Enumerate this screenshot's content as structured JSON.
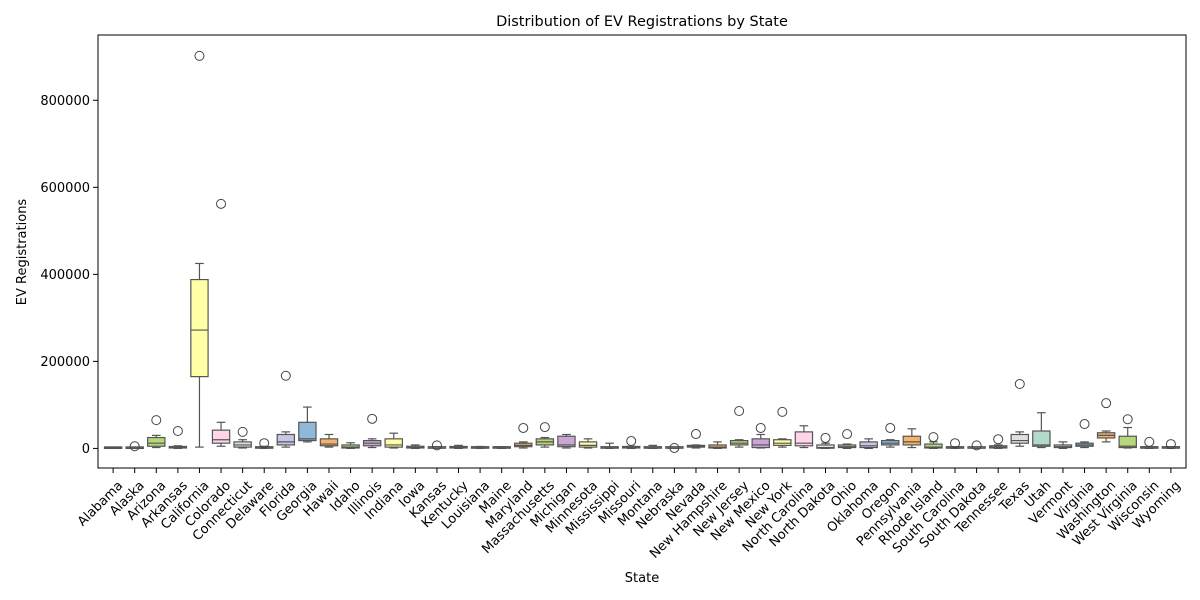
{
  "chart_data": {
    "type": "box",
    "title": "Distribution of EV Registrations by State",
    "xlabel": "State",
    "ylabel": "EV Registrations",
    "ylim": [
      -45000,
      950000
    ],
    "yticks": [
      0,
      200000,
      400000,
      600000,
      800000
    ],
    "ytick_labels": [
      "0",
      "200000",
      "400000",
      "600000",
      "800000"
    ],
    "grid": false,
    "palette": [
      "#8fb8d9",
      "#f6b26b",
      "#b6d77a",
      "#c9a6d6",
      "#ffffa6",
      "#ffd6e7",
      "#e0e0e0",
      "#b3d9c9",
      "#c6c6e6"
    ],
    "states": [
      {
        "name": "Alabama",
        "q1": 0,
        "med": 1000,
        "q3": 2000,
        "lo": 0,
        "hi": 3000,
        "out": []
      },
      {
        "name": "Alaska",
        "q1": 0,
        "med": 500,
        "q3": 1000,
        "lo": 0,
        "hi": 1500,
        "out": [
          5000
        ]
      },
      {
        "name": "Arizona",
        "q1": 5000,
        "med": 12000,
        "q3": 25000,
        "lo": 2000,
        "hi": 30000,
        "out": [
          65000
        ]
      },
      {
        "name": "Arkansas",
        "q1": 1000,
        "med": 2000,
        "q3": 4000,
        "lo": 0,
        "hi": 6000,
        "out": [
          40000
        ]
      },
      {
        "name": "California",
        "q1": 165000,
        "med": 272000,
        "q3": 388000,
        "lo": 3000,
        "hi": 425000,
        "out": [
          902000
        ]
      },
      {
        "name": "Colorado",
        "q1": 12000,
        "med": 20000,
        "q3": 42000,
        "lo": 5000,
        "hi": 60000,
        "out": [
          562000
        ]
      },
      {
        "name": "Connecticut",
        "q1": 3000,
        "med": 8000,
        "q3": 15000,
        "lo": 1000,
        "hi": 20000,
        "out": [
          38000
        ]
      },
      {
        "name": "Delaware",
        "q1": 500,
        "med": 1500,
        "q3": 3000,
        "lo": 0,
        "hi": 5000,
        "out": [
          12000
        ]
      },
      {
        "name": "Florida",
        "q1": 8000,
        "med": 15000,
        "q3": 32000,
        "lo": 3000,
        "hi": 38000,
        "out": [
          167000
        ]
      },
      {
        "name": "Georgia",
        "q1": 18000,
        "med": 22000,
        "q3": 60000,
        "lo": 15000,
        "hi": 95000,
        "out": []
      },
      {
        "name": "Hawaii",
        "q1": 6000,
        "med": 10000,
        "q3": 22000,
        "lo": 3000,
        "hi": 32000,
        "out": []
      },
      {
        "name": "Idaho",
        "q1": 1000,
        "med": 3000,
        "q3": 8000,
        "lo": 0,
        "hi": 13000,
        "out": []
      },
      {
        "name": "Illinois",
        "q1": 6000,
        "med": 12000,
        "q3": 18000,
        "lo": 2000,
        "hi": 22000,
        "out": [
          68000
        ]
      },
      {
        "name": "Indiana",
        "q1": 3000,
        "med": 8000,
        "q3": 22000,
        "lo": 1000,
        "hi": 35000,
        "out": []
      },
      {
        "name": "Iowa",
        "q1": 1000,
        "med": 2500,
        "q3": 5000,
        "lo": 0,
        "hi": 8000,
        "out": []
      },
      {
        "name": "Kansas",
        "q1": 500,
        "med": 1000,
        "q3": 2500,
        "lo": 0,
        "hi": 4000,
        "out": [
          7000
        ]
      },
      {
        "name": "Kentucky",
        "q1": 1000,
        "med": 2000,
        "q3": 4000,
        "lo": 0,
        "hi": 7000,
        "out": []
      },
      {
        "name": "Louisiana",
        "q1": 500,
        "med": 1500,
        "q3": 3000,
        "lo": 0,
        "hi": 4500,
        "out": []
      },
      {
        "name": "Maine",
        "q1": 500,
        "med": 1500,
        "q3": 3000,
        "lo": 0,
        "hi": 4000,
        "out": []
      },
      {
        "name": "Maryland",
        "q1": 4000,
        "med": 7000,
        "q3": 12000,
        "lo": 1000,
        "hi": 15000,
        "out": [
          47000
        ]
      },
      {
        "name": "Massachusetts",
        "q1": 8000,
        "med": 15000,
        "q3": 22000,
        "lo": 3000,
        "hi": 25000,
        "out": [
          49000
        ]
      },
      {
        "name": "Michigan",
        "q1": 4000,
        "med": 8000,
        "q3": 28000,
        "lo": 1000,
        "hi": 32000,
        "out": []
      },
      {
        "name": "Minnesota",
        "q1": 3000,
        "med": 7000,
        "q3": 15000,
        "lo": 1000,
        "hi": 22000,
        "out": []
      },
      {
        "name": "Mississippi",
        "q1": 500,
        "med": 1500,
        "q3": 4000,
        "lo": 0,
        "hi": 12000,
        "out": []
      },
      {
        "name": "Missouri",
        "q1": 1000,
        "med": 2000,
        "q3": 4000,
        "lo": 0,
        "hi": 5000,
        "out": [
          17000
        ]
      },
      {
        "name": "Montana",
        "q1": 500,
        "med": 1500,
        "q3": 4000,
        "lo": 0,
        "hi": 7000,
        "out": []
      },
      {
        "name": "Nebraska",
        "q1": 500,
        "med": 1000,
        "q3": 2000,
        "lo": 0,
        "hi": 3000,
        "out": [
          1000
        ]
      },
      {
        "name": "Nevada",
        "q1": 3000,
        "med": 5000,
        "q3": 7000,
        "lo": 1000,
        "hi": 8000,
        "out": [
          33000
        ]
      },
      {
        "name": "New Hampshire",
        "q1": 1000,
        "med": 3000,
        "q3": 8000,
        "lo": 0,
        "hi": 15000,
        "out": []
      },
      {
        "name": "New Jersey",
        "q1": 8000,
        "med": 12000,
        "q3": 18000,
        "lo": 3000,
        "hi": 20000,
        "out": [
          86000
        ]
      },
      {
        "name": "New Mexico",
        "q1": 2000,
        "med": 8000,
        "q3": 22000,
        "lo": 1000,
        "hi": 32000,
        "out": [
          47000
        ]
      },
      {
        "name": "New York",
        "q1": 7000,
        "med": 12000,
        "q3": 20000,
        "lo": 3000,
        "hi": 22000,
        "out": [
          84000
        ]
      },
      {
        "name": "North Carolina",
        "q1": 6000,
        "med": 12000,
        "q3": 38000,
        "lo": 2000,
        "hi": 52000,
        "out": []
      },
      {
        "name": "North Dakota",
        "q1": 500,
        "med": 2000,
        "q3": 8000,
        "lo": 0,
        "hi": 12000,
        "out": [
          24000
        ]
      },
      {
        "name": "Ohio",
        "q1": 2000,
        "med": 4000,
        "q3": 8000,
        "lo": 0,
        "hi": 10000,
        "out": [
          33000
        ]
      },
      {
        "name": "Oklahoma",
        "q1": 2000,
        "med": 6000,
        "q3": 15000,
        "lo": 0,
        "hi": 22000,
        "out": []
      },
      {
        "name": "Oregon",
        "q1": 8000,
        "med": 12000,
        "q3": 18000,
        "lo": 3000,
        "hi": 20000,
        "out": [
          47000
        ]
      },
      {
        "name": "Pennsylvania",
        "q1": 8000,
        "med": 15000,
        "q3": 28000,
        "lo": 2000,
        "hi": 45000,
        "out": []
      },
      {
        "name": "Rhode Island",
        "q1": 1000,
        "med": 3000,
        "q3": 10000,
        "lo": 0,
        "hi": 15000,
        "out": [
          26000
        ]
      },
      {
        "name": "South Carolina",
        "q1": 500,
        "med": 1500,
        "q3": 3000,
        "lo": 0,
        "hi": 4000,
        "out": [
          12000
        ]
      },
      {
        "name": "South Dakota",
        "q1": 500,
        "med": 1000,
        "q3": 2000,
        "lo": 0,
        "hi": 3000,
        "out": [
          7000
        ]
      },
      {
        "name": "Tennessee",
        "q1": 1000,
        "med": 3000,
        "q3": 6000,
        "lo": 0,
        "hi": 8000,
        "out": [
          21000
        ]
      },
      {
        "name": "Texas",
        "q1": 12000,
        "med": 18000,
        "q3": 32000,
        "lo": 5000,
        "hi": 38000,
        "out": [
          148000
        ]
      },
      {
        "name": "Utah",
        "q1": 5000,
        "med": 8000,
        "q3": 40000,
        "lo": 2000,
        "hi": 82000,
        "out": []
      },
      {
        "name": "Vermont",
        "q1": 2000,
        "med": 4000,
        "q3": 8000,
        "lo": 0,
        "hi": 15000,
        "out": []
      },
      {
        "name": "Virginia",
        "q1": 5000,
        "med": 8000,
        "q3": 12000,
        "lo": 2000,
        "hi": 15000,
        "out": [
          56000
        ]
      },
      {
        "name": "Washington",
        "q1": 24000,
        "med": 30000,
        "q3": 36000,
        "lo": 15000,
        "hi": 40000,
        "out": [
          104000
        ]
      },
      {
        "name": "West Virginia",
        "q1": 2000,
        "med": 5000,
        "q3": 28000,
        "lo": 1000,
        "hi": 48000,
        "out": [
          67000
        ]
      },
      {
        "name": "Wisconsin",
        "q1": 500,
        "med": 1500,
        "q3": 3000,
        "lo": 0,
        "hi": 4000,
        "out": [
          15000
        ]
      },
      {
        "name": "Wyoming",
        "q1": 500,
        "med": 1500,
        "q3": 3000,
        "lo": 0,
        "hi": 4000,
        "out": [
          10000
        ]
      }
    ]
  }
}
